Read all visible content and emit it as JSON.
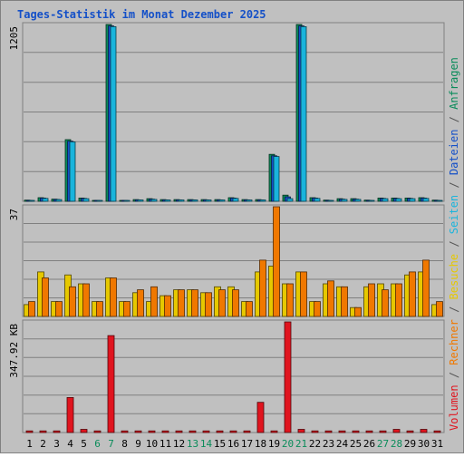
{
  "title": "Tages-Statistik im Monat Dezember 2025",
  "legend_right": [
    {
      "text": "Volumen",
      "color": "#e0141e"
    },
    {
      "text": " / ",
      "color": "#555555"
    },
    {
      "text": "Rechner",
      "color": "#f07800"
    },
    {
      "text": " / ",
      "color": "#555555"
    },
    {
      "text": "Besuche",
      "color": "#e6c800"
    },
    {
      "text": " / ",
      "color": "#555555"
    },
    {
      "text": "Seiten",
      "color": "#19b4dc"
    },
    {
      "text": " / ",
      "color": "#555555"
    },
    {
      "text": "Dateien",
      "color": "#1450c8"
    },
    {
      "text": " / ",
      "color": "#555555"
    },
    {
      "text": "Anfragen",
      "color": "#0a8c5a"
    }
  ],
  "chart_data": [
    {
      "type": "bar",
      "panel": "anfragen-dateien",
      "max_label": "1205",
      "ylim": [
        0,
        1205
      ],
      "x": [
        "1",
        "2",
        "3",
        "4",
        "5",
        "6",
        "7",
        "8",
        "9",
        "10",
        "11",
        "12",
        "13",
        "14",
        "15",
        "16",
        "17",
        "18",
        "19",
        "20",
        "21",
        "22",
        "23",
        "24",
        "25",
        "26",
        "27",
        "28",
        "29",
        "30",
        "31"
      ],
      "x_weekend": [
        "6",
        "7",
        "13",
        "14",
        "20",
        "21",
        "27",
        "28"
      ],
      "series": [
        {
          "name": "Anfragen",
          "color": "#0a8c5a",
          "values": [
            8,
            25,
            15,
            420,
            22,
            5,
            1205,
            5,
            12,
            18,
            12,
            12,
            12,
            12,
            12,
            25,
            12,
            12,
            320,
            42,
            1205,
            25,
            8,
            18,
            18,
            8,
            22,
            22,
            22,
            25,
            8
          ]
        },
        {
          "name": "Dateien",
          "color": "#1450c8",
          "values": [
            6,
            22,
            13,
            410,
            20,
            4,
            1195,
            4,
            10,
            15,
            10,
            10,
            10,
            10,
            10,
            22,
            10,
            10,
            310,
            30,
            1195,
            22,
            6,
            15,
            15,
            6,
            20,
            20,
            20,
            22,
            6
          ]
        },
        {
          "name": "Seiten",
          "color": "#19b4dc",
          "values": [
            5,
            20,
            12,
            405,
            18,
            3,
            1190,
            3,
            9,
            13,
            9,
            9,
            9,
            9,
            9,
            20,
            9,
            9,
            305,
            18,
            1190,
            20,
            5,
            13,
            13,
            5,
            18,
            18,
            18,
            20,
            5
          ]
        }
      ]
    },
    {
      "type": "bar",
      "panel": "besuche-rechner",
      "max_label": "37",
      "ylim": [
        0,
        37
      ],
      "x": [
        "1",
        "2",
        "3",
        "4",
        "5",
        "6",
        "7",
        "8",
        "9",
        "10",
        "11",
        "12",
        "13",
        "14",
        "15",
        "16",
        "17",
        "18",
        "19",
        "20",
        "21",
        "22",
        "23",
        "24",
        "25",
        "26",
        "27",
        "28",
        "29",
        "30",
        "31"
      ],
      "series": [
        {
          "name": "Besuche",
          "color": "#e6c800",
          "values": [
            4,
            15,
            5,
            14,
            11,
            5,
            13,
            5,
            8,
            5,
            7,
            9,
            9,
            8,
            10,
            10,
            5,
            15,
            17,
            11,
            15,
            5,
            11,
            10,
            3,
            10,
            11,
            11,
            14,
            15,
            4
          ]
        },
        {
          "name": "Rechner",
          "color": "#f07800",
          "values": [
            5,
            13,
            5,
            10,
            11,
            5,
            13,
            5,
            9,
            10,
            7,
            9,
            9,
            8,
            9,
            9,
            5,
            19,
            37,
            11,
            15,
            5,
            12,
            10,
            3,
            11,
            9,
            11,
            15,
            19,
            5
          ]
        }
      ]
    },
    {
      "type": "bar",
      "panel": "volumen",
      "max_label": "347.92 KB",
      "ylim": [
        0,
        347.92
      ],
      "x": [
        "1",
        "2",
        "3",
        "4",
        "5",
        "6",
        "7",
        "8",
        "9",
        "10",
        "11",
        "12",
        "13",
        "14",
        "15",
        "16",
        "17",
        "18",
        "19",
        "20",
        "21",
        "22",
        "23",
        "24",
        "25",
        "26",
        "27",
        "28",
        "29",
        "30",
        "31"
      ],
      "series": [
        {
          "name": "Volumen",
          "color": "#e0141e",
          "values": [
            5,
            5,
            5,
            110,
            10,
            5,
            305,
            5,
            5,
            5,
            5,
            5,
            5,
            5,
            5,
            5,
            5,
            95,
            5,
            347.92,
            10,
            5,
            5,
            5,
            5,
            5,
            5,
            10,
            5,
            10,
            5
          ]
        }
      ]
    }
  ]
}
